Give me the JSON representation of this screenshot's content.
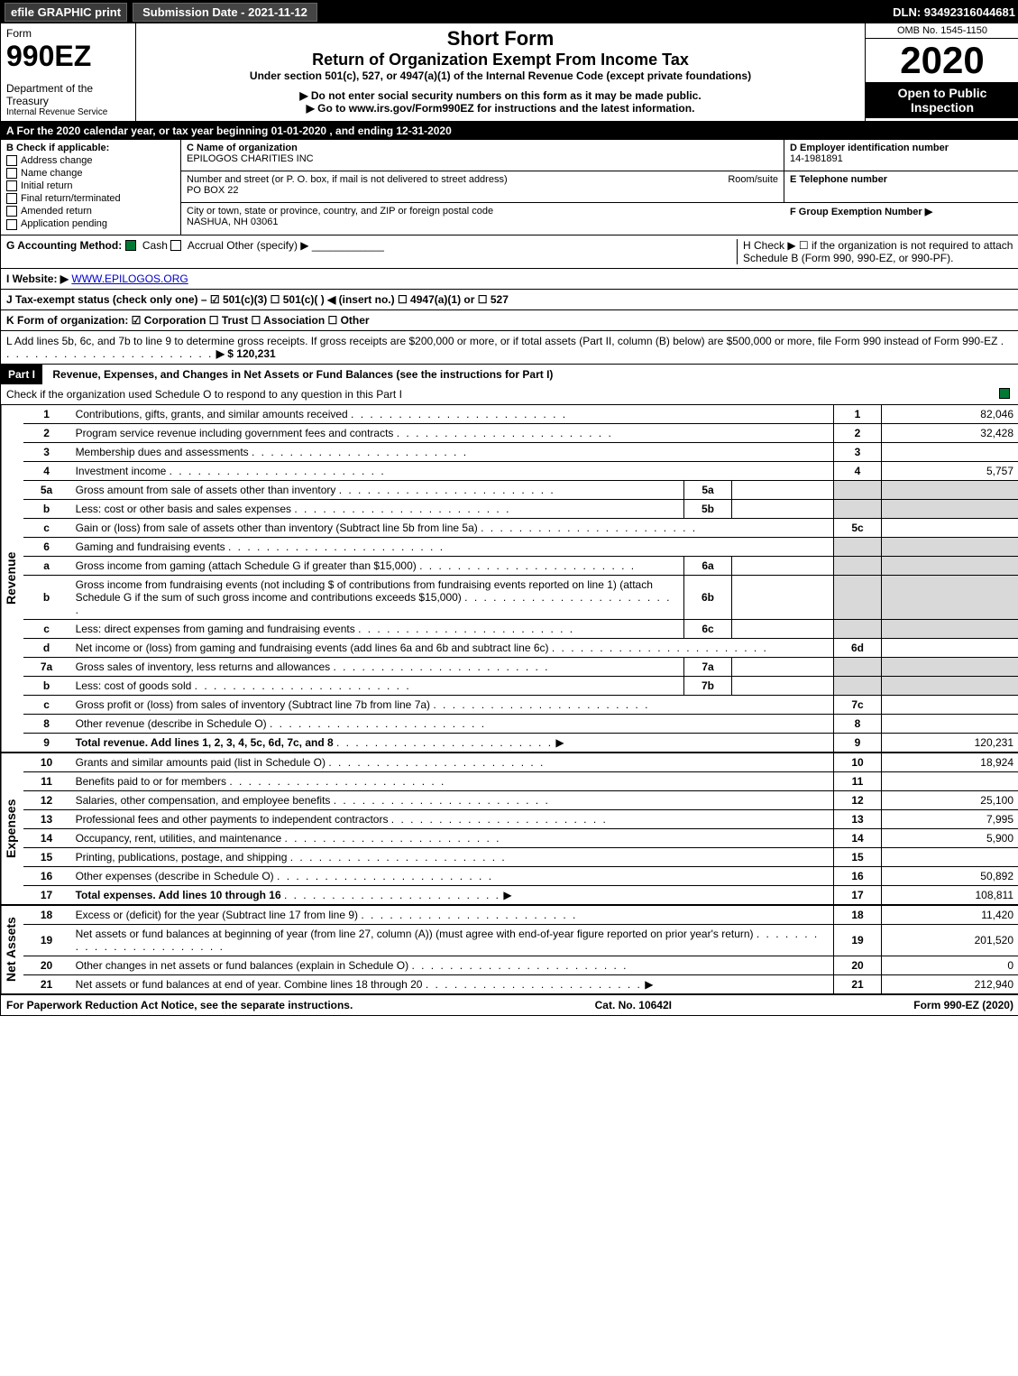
{
  "topbar": {
    "efile": "efile GRAPHIC print",
    "submission": "Submission Date - 2021-11-12",
    "dln": "DLN: 93492316044681"
  },
  "header": {
    "form_label": "Form",
    "form_number": "990EZ",
    "dept": "Department of the Treasury",
    "irs": "Internal Revenue Service",
    "short_form": "Short Form",
    "return_title": "Return of Organization Exempt From Income Tax",
    "under_section": "Under section 501(c), 527, or 4947(a)(1) of the Internal Revenue Code (except private foundations)",
    "ssn_warn": "▶ Do not enter social security numbers on this form as it may be made public.",
    "goto": "▶ Go to www.irs.gov/Form990EZ for instructions and the latest information.",
    "omb": "OMB No. 1545-1150",
    "year": "2020",
    "open": "Open to Public Inspection"
  },
  "period": {
    "text": "A For the 2020 calendar year, or tax year beginning 01-01-2020 , and ending 12-31-2020"
  },
  "boxB": {
    "label": "B Check if applicable:",
    "opts": [
      "Address change",
      "Name change",
      "Initial return",
      "Final return/terminated",
      "Amended return",
      "Application pending"
    ]
  },
  "boxC": {
    "label": "C Name of organization",
    "name": "EPILOGOS CHARITIES INC",
    "addr_label": "Number and street (or P. O. box, if mail is not delivered to street address)",
    "room_label": "Room/suite",
    "addr": "PO BOX 22",
    "city_label": "City or town, state or province, country, and ZIP or foreign postal code",
    "city": "NASHUA, NH  03061"
  },
  "boxD": {
    "label": "D Employer identification number",
    "val": "14-1981891"
  },
  "boxE": {
    "label": "E Telephone number",
    "val": ""
  },
  "boxF": {
    "label": "F Group Exemption Number  ▶",
    "val": ""
  },
  "boxG": {
    "label": "G Accounting Method:",
    "cash": "Cash",
    "accrual": "Accrual",
    "other": "Other (specify) ▶"
  },
  "boxH": {
    "label": "H Check ▶ ☐ if the organization is not required to attach Schedule B (Form 990, 990-EZ, or 990-PF)."
  },
  "boxI": {
    "label": "I Website: ▶",
    "val": "WWW.EPILOGOS.ORG"
  },
  "boxJ": {
    "label": "J Tax-exempt status (check only one) – ☑ 501(c)(3) ☐ 501(c)(  ) ◀ (insert no.) ☐ 4947(a)(1) or ☐ 527"
  },
  "boxK": {
    "label": "K Form of organization:  ☑ Corporation  ☐ Trust  ☐ Association  ☐ Other"
  },
  "boxL": {
    "label": "L Add lines 5b, 6c, and 7b to line 9 to determine gross receipts. If gross receipts are $200,000 or more, or if total assets (Part II, column (B) below) are $500,000 or more, file Form 990 instead of Form 990-EZ",
    "amount": "▶ $ 120,231"
  },
  "part1": {
    "title": "Part I",
    "heading": "Revenue, Expenses, and Changes in Net Assets or Fund Balances (see the instructions for Part I)",
    "check_o": "Check if the organization used Schedule O to respond to any question in this Part I",
    "sections": {
      "revenue": "Revenue",
      "expenses": "Expenses",
      "netassets": "Net Assets"
    },
    "lines": [
      {
        "n": "1",
        "desc": "Contributions, gifts, grants, and similar amounts received",
        "box": "1",
        "val": "82,046"
      },
      {
        "n": "2",
        "desc": "Program service revenue including government fees and contracts",
        "box": "2",
        "val": "32,428"
      },
      {
        "n": "3",
        "desc": "Membership dues and assessments",
        "box": "3",
        "val": ""
      },
      {
        "n": "4",
        "desc": "Investment income",
        "box": "4",
        "val": "5,757"
      },
      {
        "n": "5a",
        "desc": "Gross amount from sale of assets other than inventory",
        "sub": "5a",
        "subval": "",
        "shade": true
      },
      {
        "n": "b",
        "desc": "Less: cost or other basis and sales expenses",
        "sub": "5b",
        "subval": "",
        "shade": true
      },
      {
        "n": "c",
        "desc": "Gain or (loss) from sale of assets other than inventory (Subtract line 5b from line 5a)",
        "box": "5c",
        "val": ""
      },
      {
        "n": "6",
        "desc": "Gaming and fundraising events",
        "shade": true,
        "noline": true
      },
      {
        "n": "a",
        "desc": "Gross income from gaming (attach Schedule G if greater than $15,000)",
        "sub": "6a",
        "subval": "",
        "shade": true
      },
      {
        "n": "b",
        "desc": "Gross income from fundraising events (not including $                 of contributions from fundraising events reported on line 1) (attach Schedule G if the sum of such gross income and contributions exceeds $15,000)",
        "sub": "6b",
        "subval": "",
        "shade": true
      },
      {
        "n": "c",
        "desc": "Less: direct expenses from gaming and fundraising events",
        "sub": "6c",
        "subval": "",
        "shade": true
      },
      {
        "n": "d",
        "desc": "Net income or (loss) from gaming and fundraising events (add lines 6a and 6b and subtract line 6c)",
        "box": "6d",
        "val": ""
      },
      {
        "n": "7a",
        "desc": "Gross sales of inventory, less returns and allowances",
        "sub": "7a",
        "subval": "",
        "shade": true
      },
      {
        "n": "b",
        "desc": "Less: cost of goods sold",
        "sub": "7b",
        "subval": "",
        "shade": true
      },
      {
        "n": "c",
        "desc": "Gross profit or (loss) from sales of inventory (Subtract line 7b from line 7a)",
        "box": "7c",
        "val": ""
      },
      {
        "n": "8",
        "desc": "Other revenue (describe in Schedule O)",
        "box": "8",
        "val": ""
      },
      {
        "n": "9",
        "desc": "Total revenue. Add lines 1, 2, 3, 4, 5c, 6d, 7c, and 8",
        "box": "9",
        "val": "120,231",
        "bold": true,
        "arrow": true
      }
    ],
    "exp_lines": [
      {
        "n": "10",
        "desc": "Grants and similar amounts paid (list in Schedule O)",
        "box": "10",
        "val": "18,924"
      },
      {
        "n": "11",
        "desc": "Benefits paid to or for members",
        "box": "11",
        "val": ""
      },
      {
        "n": "12",
        "desc": "Salaries, other compensation, and employee benefits",
        "box": "12",
        "val": "25,100"
      },
      {
        "n": "13",
        "desc": "Professional fees and other payments to independent contractors",
        "box": "13",
        "val": "7,995"
      },
      {
        "n": "14",
        "desc": "Occupancy, rent, utilities, and maintenance",
        "box": "14",
        "val": "5,900"
      },
      {
        "n": "15",
        "desc": "Printing, publications, postage, and shipping",
        "box": "15",
        "val": ""
      },
      {
        "n": "16",
        "desc": "Other expenses (describe in Schedule O)",
        "box": "16",
        "val": "50,892"
      },
      {
        "n": "17",
        "desc": "Total expenses. Add lines 10 through 16",
        "box": "17",
        "val": "108,811",
        "bold": true,
        "arrow": true
      }
    ],
    "net_lines": [
      {
        "n": "18",
        "desc": "Excess or (deficit) for the year (Subtract line 17 from line 9)",
        "box": "18",
        "val": "11,420"
      },
      {
        "n": "19",
        "desc": "Net assets or fund balances at beginning of year (from line 27, column (A)) (must agree with end-of-year figure reported on prior year's return)",
        "box": "19",
        "val": "201,520"
      },
      {
        "n": "20",
        "desc": "Other changes in net assets or fund balances (explain in Schedule O)",
        "box": "20",
        "val": "0"
      },
      {
        "n": "21",
        "desc": "Net assets or fund balances at end of year. Combine lines 18 through 20",
        "box": "21",
        "val": "212,940",
        "arrow": true
      }
    ]
  },
  "footer": {
    "left": "For Paperwork Reduction Act Notice, see the separate instructions.",
    "mid": "Cat. No. 10642I",
    "right": "Form 990-EZ (2020)"
  }
}
